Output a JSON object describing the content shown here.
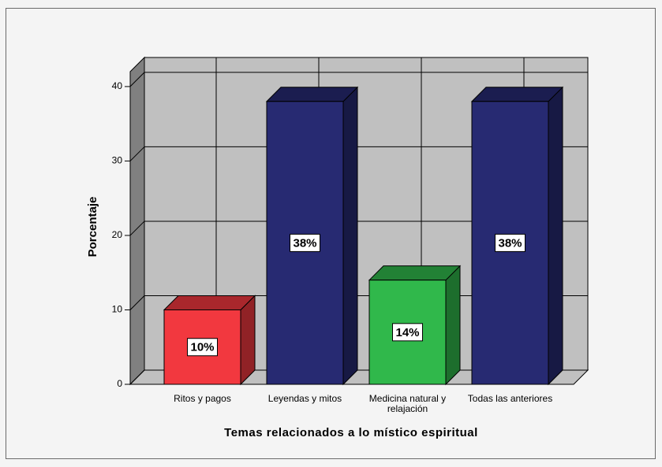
{
  "chart_data": {
    "type": "bar3d",
    "x_label": "Temas relacionados a lo místico espiritual",
    "y_label": "Porcentaje",
    "categories": [
      "Ritos y pagos",
      "Leyendas y mitos",
      "Medicina natural y relajación",
      "Todas las anteriores"
    ],
    "values": [
      10,
      38,
      14,
      38
    ],
    "value_labels": [
      "10%",
      "38%",
      "14%",
      "38%"
    ],
    "colors": [
      "#f2383f",
      "#272a72",
      "#30b84b",
      "#272a72"
    ],
    "ylim": [
      0,
      42
    ],
    "yticks": [
      0,
      10,
      20,
      30,
      40
    ],
    "grid": true
  }
}
